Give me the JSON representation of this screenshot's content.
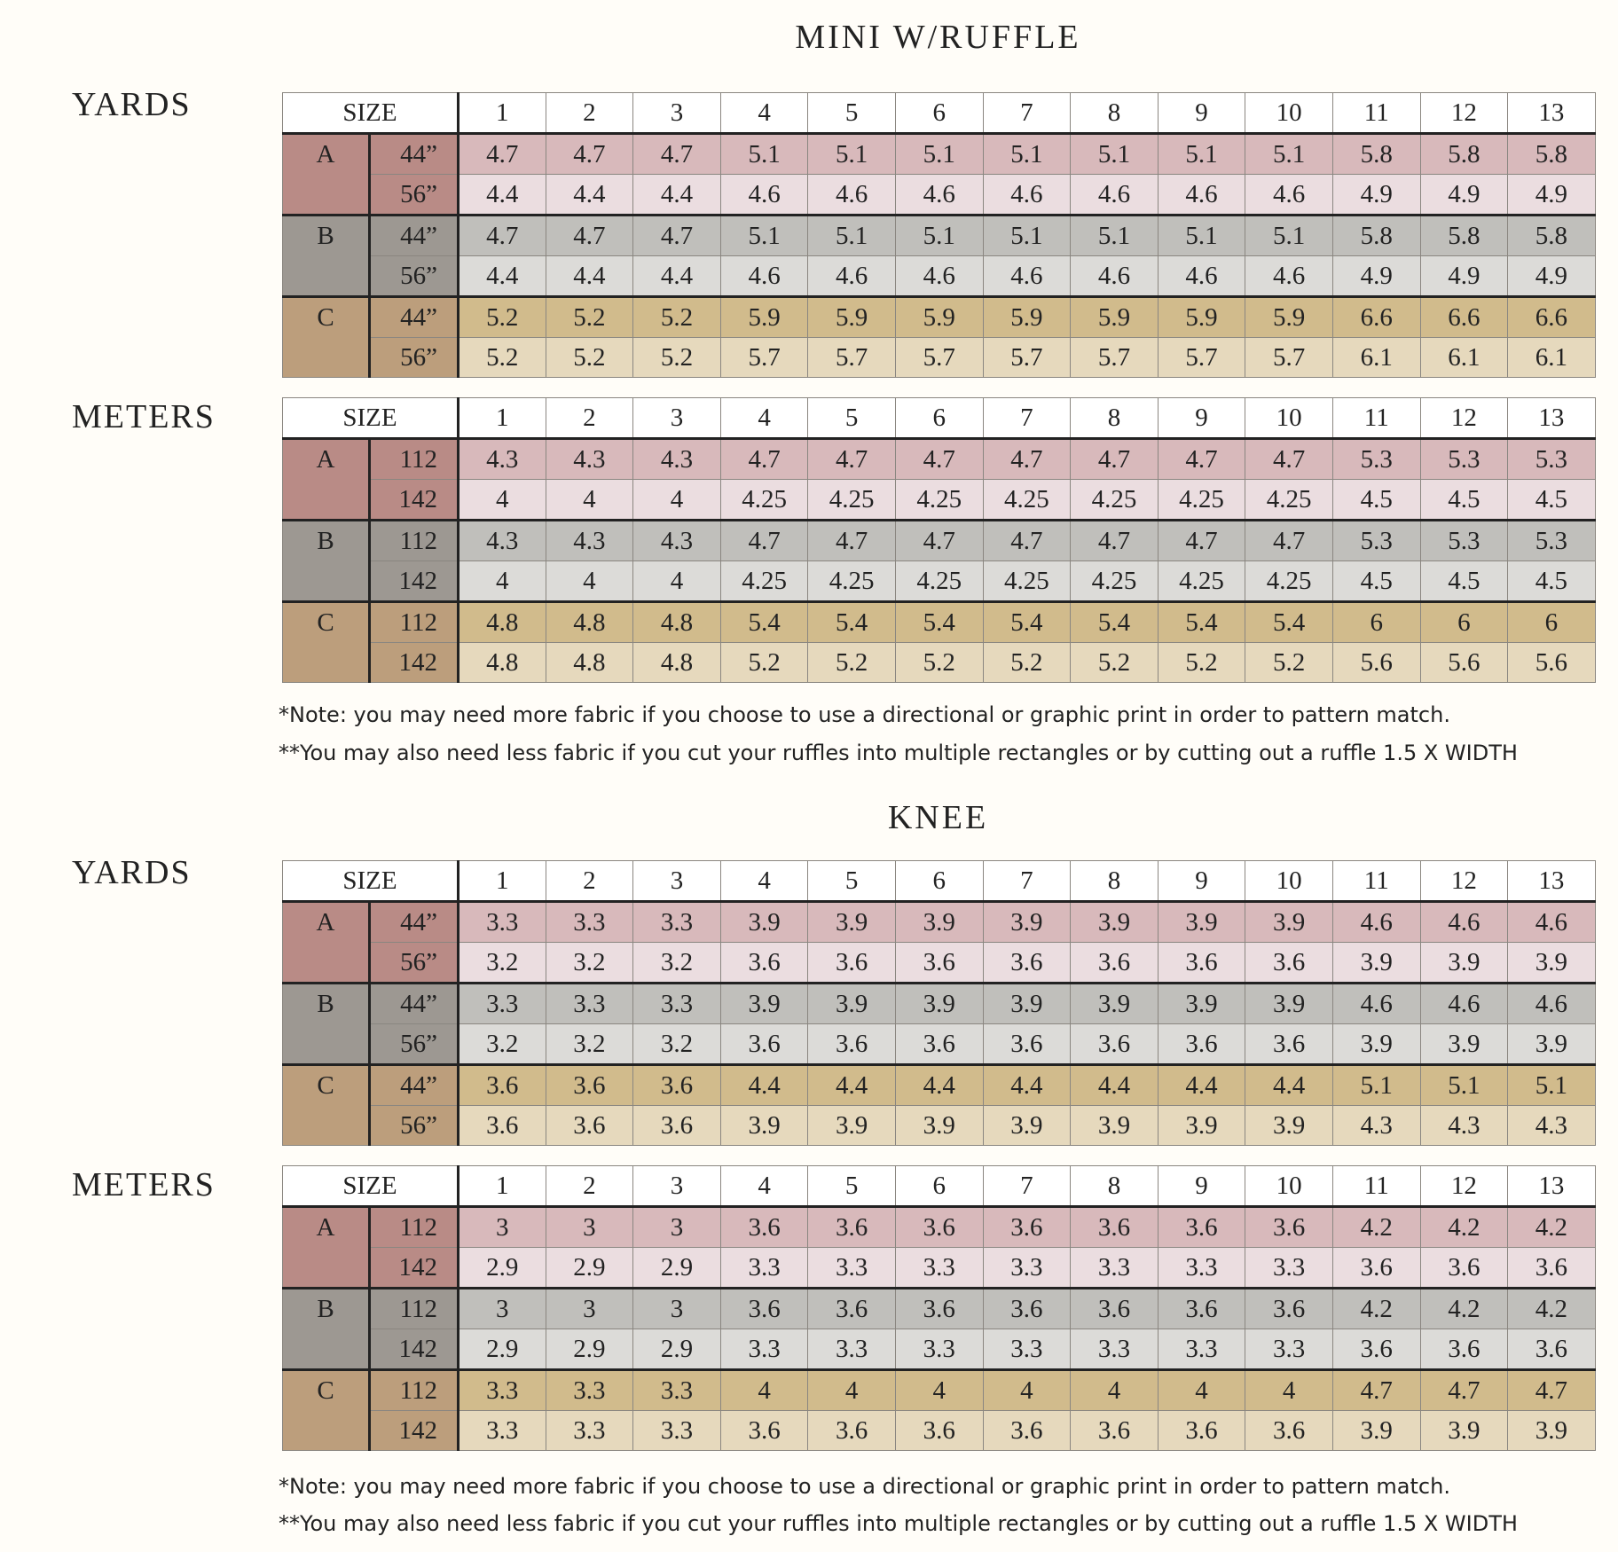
{
  "colors": {
    "A": {
      "label": "#b98b86",
      "r1": "#d8b9bb",
      "r2": "#ebdde0"
    },
    "B": {
      "label": "#9d9892",
      "r1": "#c0bfbb",
      "r2": "#dcdbd8"
    },
    "C": {
      "label": "#bc9e7c",
      "r1": "#d1bb8c",
      "r2": "#e6d9bd"
    }
  },
  "size_label": "SIZE",
  "sizes": [
    "1",
    "2",
    "3",
    "4",
    "5",
    "6",
    "7",
    "8",
    "9",
    "10",
    "11",
    "12",
    "13"
  ],
  "sections": [
    {
      "title": "MINI W/RUFFLE",
      "notes": [
        "*Note: you may need more fabric if you choose to use a directional or graphic print in order to pattern match.",
        "**You may also need less fabric if you cut your ruffles into multiple rectangles or by cutting out a ruffle 1.5 X WIDTH"
      ],
      "tables": [
        {
          "unit": "YARDS",
          "groups": [
            {
              "view": "A",
              "rows": [
                {
                  "width": "44”",
                  "values": [
                    "4.7",
                    "4.7",
                    "4.7",
                    "5.1",
                    "5.1",
                    "5.1",
                    "5.1",
                    "5.1",
                    "5.1",
                    "5.1",
                    "5.8",
                    "5.8",
                    "5.8"
                  ]
                },
                {
                  "width": "56”",
                  "values": [
                    "4.4",
                    "4.4",
                    "4.4",
                    "4.6",
                    "4.6",
                    "4.6",
                    "4.6",
                    "4.6",
                    "4.6",
                    "4.6",
                    "4.9",
                    "4.9",
                    "4.9"
                  ]
                }
              ]
            },
            {
              "view": "B",
              "rows": [
                {
                  "width": "44”",
                  "values": [
                    "4.7",
                    "4.7",
                    "4.7",
                    "5.1",
                    "5.1",
                    "5.1",
                    "5.1",
                    "5.1",
                    "5.1",
                    "5.1",
                    "5.8",
                    "5.8",
                    "5.8"
                  ]
                },
                {
                  "width": "56”",
                  "values": [
                    "4.4",
                    "4.4",
                    "4.4",
                    "4.6",
                    "4.6",
                    "4.6",
                    "4.6",
                    "4.6",
                    "4.6",
                    "4.6",
                    "4.9",
                    "4.9",
                    "4.9"
                  ]
                }
              ]
            },
            {
              "view": "C",
              "rows": [
                {
                  "width": "44”",
                  "values": [
                    "5.2",
                    "5.2",
                    "5.2",
                    "5.9",
                    "5.9",
                    "5.9",
                    "5.9",
                    "5.9",
                    "5.9",
                    "5.9",
                    "6.6",
                    "6.6",
                    "6.6"
                  ]
                },
                {
                  "width": "56”",
                  "values": [
                    "5.2",
                    "5.2",
                    "5.2",
                    "5.7",
                    "5.7",
                    "5.7",
                    "5.7",
                    "5.7",
                    "5.7",
                    "5.7",
                    "6.1",
                    "6.1",
                    "6.1"
                  ]
                }
              ]
            }
          ]
        },
        {
          "unit": "METERS",
          "groups": [
            {
              "view": "A",
              "rows": [
                {
                  "width": "112",
                  "values": [
                    "4.3",
                    "4.3",
                    "4.3",
                    "4.7",
                    "4.7",
                    "4.7",
                    "4.7",
                    "4.7",
                    "4.7",
                    "4.7",
                    "5.3",
                    "5.3",
                    "5.3"
                  ]
                },
                {
                  "width": "142",
                  "values": [
                    "4",
                    "4",
                    "4",
                    "4.25",
                    "4.25",
                    "4.25",
                    "4.25",
                    "4.25",
                    "4.25",
                    "4.25",
                    "4.5",
                    "4.5",
                    "4.5"
                  ]
                }
              ]
            },
            {
              "view": "B",
              "rows": [
                {
                  "width": "112",
                  "values": [
                    "4.3",
                    "4.3",
                    "4.3",
                    "4.7",
                    "4.7",
                    "4.7",
                    "4.7",
                    "4.7",
                    "4.7",
                    "4.7",
                    "5.3",
                    "5.3",
                    "5.3"
                  ]
                },
                {
                  "width": "142",
                  "values": [
                    "4",
                    "4",
                    "4",
                    "4.25",
                    "4.25",
                    "4.25",
                    "4.25",
                    "4.25",
                    "4.25",
                    "4.25",
                    "4.5",
                    "4.5",
                    "4.5"
                  ]
                }
              ]
            },
            {
              "view": "C",
              "rows": [
                {
                  "width": "112",
                  "values": [
                    "4.8",
                    "4.8",
                    "4.8",
                    "5.4",
                    "5.4",
                    "5.4",
                    "5.4",
                    "5.4",
                    "5.4",
                    "5.4",
                    "6",
                    "6",
                    "6"
                  ]
                },
                {
                  "width": "142",
                  "values": [
                    "4.8",
                    "4.8",
                    "4.8",
                    "5.2",
                    "5.2",
                    "5.2",
                    "5.2",
                    "5.2",
                    "5.2",
                    "5.2",
                    "5.6",
                    "5.6",
                    "5.6"
                  ]
                }
              ]
            }
          ]
        }
      ]
    },
    {
      "title": "KNEE",
      "notes": [
        "*Note: you may need more fabric if you choose to use a directional or graphic print in order to pattern match.",
        "**You may also need less fabric if you cut your ruffles into multiple rectangles or by cutting out a ruffle 1.5 X WIDTH"
      ],
      "tables": [
        {
          "unit": "YARDS",
          "groups": [
            {
              "view": "A",
              "rows": [
                {
                  "width": "44”",
                  "values": [
                    "3.3",
                    "3.3",
                    "3.3",
                    "3.9",
                    "3.9",
                    "3.9",
                    "3.9",
                    "3.9",
                    "3.9",
                    "3.9",
                    "4.6",
                    "4.6",
                    "4.6"
                  ]
                },
                {
                  "width": "56”",
                  "values": [
                    "3.2",
                    "3.2",
                    "3.2",
                    "3.6",
                    "3.6",
                    "3.6",
                    "3.6",
                    "3.6",
                    "3.6",
                    "3.6",
                    "3.9",
                    "3.9",
                    "3.9"
                  ]
                }
              ]
            },
            {
              "view": "B",
              "rows": [
                {
                  "width": "44”",
                  "values": [
                    "3.3",
                    "3.3",
                    "3.3",
                    "3.9",
                    "3.9",
                    "3.9",
                    "3.9",
                    "3.9",
                    "3.9",
                    "3.9",
                    "4.6",
                    "4.6",
                    "4.6"
                  ]
                },
                {
                  "width": "56”",
                  "values": [
                    "3.2",
                    "3.2",
                    "3.2",
                    "3.6",
                    "3.6",
                    "3.6",
                    "3.6",
                    "3.6",
                    "3.6",
                    "3.6",
                    "3.9",
                    "3.9",
                    "3.9"
                  ]
                }
              ]
            },
            {
              "view": "C",
              "rows": [
                {
                  "width": "44”",
                  "values": [
                    "3.6",
                    "3.6",
                    "3.6",
                    "4.4",
                    "4.4",
                    "4.4",
                    "4.4",
                    "4.4",
                    "4.4",
                    "4.4",
                    "5.1",
                    "5.1",
                    "5.1"
                  ]
                },
                {
                  "width": "56”",
                  "values": [
                    "3.6",
                    "3.6",
                    "3.6",
                    "3.9",
                    "3.9",
                    "3.9",
                    "3.9",
                    "3.9",
                    "3.9",
                    "3.9",
                    "4.3",
                    "4.3",
                    "4.3"
                  ]
                }
              ]
            }
          ]
        },
        {
          "unit": "METERS",
          "groups": [
            {
              "view": "A",
              "rows": [
                {
                  "width": "112",
                  "values": [
                    "3",
                    "3",
                    "3",
                    "3.6",
                    "3.6",
                    "3.6",
                    "3.6",
                    "3.6",
                    "3.6",
                    "3.6",
                    "4.2",
                    "4.2",
                    "4.2"
                  ]
                },
                {
                  "width": "142",
                  "values": [
                    "2.9",
                    "2.9",
                    "2.9",
                    "3.3",
                    "3.3",
                    "3.3",
                    "3.3",
                    "3.3",
                    "3.3",
                    "3.3",
                    "3.6",
                    "3.6",
                    "3.6"
                  ]
                }
              ]
            },
            {
              "view": "B",
              "rows": [
                {
                  "width": "112",
                  "values": [
                    "3",
                    "3",
                    "3",
                    "3.6",
                    "3.6",
                    "3.6",
                    "3.6",
                    "3.6",
                    "3.6",
                    "3.6",
                    "4.2",
                    "4.2",
                    "4.2"
                  ]
                },
                {
                  "width": "142",
                  "values": [
                    "2.9",
                    "2.9",
                    "2.9",
                    "3.3",
                    "3.3",
                    "3.3",
                    "3.3",
                    "3.3",
                    "3.3",
                    "3.3",
                    "3.6",
                    "3.6",
                    "3.6"
                  ]
                }
              ]
            },
            {
              "view": "C",
              "rows": [
                {
                  "width": "112",
                  "values": [
                    "3.3",
                    "3.3",
                    "3.3",
                    "4",
                    "4",
                    "4",
                    "4",
                    "4",
                    "4",
                    "4",
                    "4.7",
                    "4.7",
                    "4.7"
                  ]
                },
                {
                  "width": "142",
                  "values": [
                    "3.3",
                    "3.3",
                    "3.3",
                    "3.6",
                    "3.6",
                    "3.6",
                    "3.6",
                    "3.6",
                    "3.6",
                    "3.6",
                    "3.9",
                    "3.9",
                    "3.9"
                  ]
                }
              ]
            }
          ]
        }
      ]
    }
  ]
}
